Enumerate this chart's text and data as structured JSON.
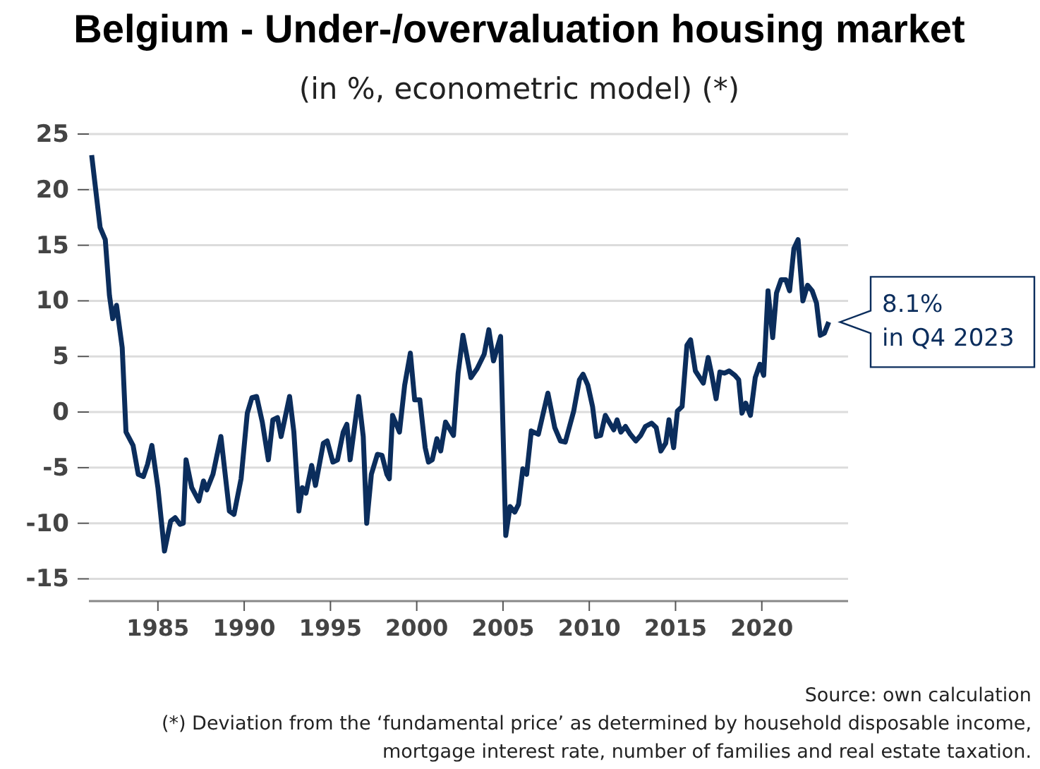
{
  "chart_data": {
    "type": "line",
    "title": "Belgium - Under-/overvaluation housing market",
    "subtitle": "(in %, econometric model) (*)",
    "x": [
      1981.16,
      1981.65,
      1981.95,
      1982.19,
      1982.38,
      1982.6,
      1982.93,
      1983.15,
      1983.56,
      1983.86,
      1984.16,
      1984.4,
      1984.65,
      1985.0,
      1985.38,
      1985.74,
      1986.0,
      1986.28,
      1986.47,
      1986.63,
      1986.96,
      1987.37,
      1987.64,
      1987.83,
      1988.19,
      1988.65,
      1989.14,
      1989.41,
      1989.82,
      1990.18,
      1990.45,
      1990.72,
      1991.05,
      1991.4,
      1991.66,
      1991.93,
      1992.14,
      1992.63,
      1992.88,
      1993.17,
      1993.37,
      1993.58,
      1993.91,
      1994.13,
      1994.59,
      1994.81,
      1995.14,
      1995.41,
      1995.74,
      1995.95,
      1996.14,
      1996.63,
      1996.9,
      1997.1,
      1997.37,
      1997.72,
      1997.99,
      1998.27,
      1998.41,
      1998.6,
      1999.0,
      1999.3,
      1999.63,
      1999.88,
      2000.18,
      2000.49,
      2000.68,
      2000.9,
      2001.17,
      2001.39,
      2001.67,
      2002.13,
      2002.4,
      2002.68,
      2003.14,
      2003.5,
      2003.91,
      2004.18,
      2004.45,
      2004.86,
      2005.16,
      2005.41,
      2005.68,
      2005.9,
      2006.15,
      2006.37,
      2006.64,
      2007.05,
      2007.6,
      2008.0,
      2008.33,
      2008.61,
      2009.1,
      2009.43,
      2009.64,
      2009.92,
      2010.19,
      2010.41,
      2010.66,
      2010.93,
      2011.15,
      2011.42,
      2011.61,
      2011.83,
      2012.1,
      2012.38,
      2012.7,
      2012.98,
      2013.25,
      2013.61,
      2013.88,
      2014.15,
      2014.43,
      2014.62,
      2014.89,
      2015.11,
      2015.38,
      2015.66,
      2015.87,
      2016.15,
      2016.61,
      2016.89,
      2017.08,
      2017.35,
      2017.57,
      2017.84,
      2018.11,
      2018.44,
      2018.66,
      2018.85,
      2019.07,
      2019.34,
      2019.62,
      2019.89,
      2020.11,
      2020.36,
      2020.63,
      2020.85,
      2021.12,
      2021.39,
      2021.61,
      2021.86,
      2022.1,
      2022.38,
      2022.65,
      2022.92,
      2023.17,
      2023.39,
      2023.63,
      2023.88
    ],
    "series": [
      {
        "color": "#0b2d5c",
        "values": [
          23.1,
          16.6,
          15.5,
          10.5,
          8.4,
          9.6,
          5.8,
          -1.8,
          -3.0,
          -5.6,
          -5.8,
          -4.7,
          -3.0,
          -6.8,
          -12.5,
          -9.8,
          -9.5,
          -10.1,
          -10.0,
          -4.3,
          -6.8,
          -8.0,
          -6.2,
          -7.0,
          -5.6,
          -2.2,
          -8.9,
          -9.2,
          -6.0,
          -0.1,
          1.3,
          1.4,
          -0.9,
          -4.3,
          -0.7,
          -0.5,
          -2.2,
          1.4,
          -1.8,
          -8.9,
          -6.8,
          -7.3,
          -4.8,
          -6.6,
          -2.8,
          -2.6,
          -4.5,
          -4.3,
          -1.8,
          -1.1,
          -4.3,
          1.4,
          -2.2,
          -10.0,
          -5.6,
          -3.8,
          -3.9,
          -5.6,
          -6.0,
          -0.3,
          -1.8,
          2.4,
          5.3,
          1.1,
          1.1,
          -3.2,
          -4.5,
          -4.3,
          -2.4,
          -3.5,
          -0.9,
          -2.1,
          3.5,
          6.9,
          3.1,
          3.9,
          5.2,
          7.4,
          4.6,
          6.8,
          -11.1,
          -8.5,
          -9.0,
          -8.3,
          -5.1,
          -5.6,
          -1.7,
          -2.0,
          1.7,
          -1.4,
          -2.6,
          -2.7,
          0.1,
          2.9,
          3.4,
          2.4,
          0.5,
          -2.2,
          -2.1,
          -0.3,
          -0.9,
          -1.6,
          -0.7,
          -1.8,
          -1.3,
          -2.0,
          -2.6,
          -2.1,
          -1.3,
          -1.0,
          -1.4,
          -3.5,
          -2.8,
          -0.7,
          -3.2,
          0.1,
          0.5,
          6.0,
          6.5,
          3.7,
          2.6,
          4.9,
          3.5,
          1.2,
          3.6,
          3.5,
          3.7,
          3.3,
          2.9,
          -0.1,
          0.8,
          -0.3,
          3.1,
          4.3,
          3.3,
          10.9,
          6.7,
          10.7,
          11.9,
          11.9,
          10.9,
          14.7,
          15.5,
          10.0,
          11.4,
          10.9,
          9.8,
          6.9,
          7.1,
          8.1
        ]
      }
    ],
    "xlim": [
      1981,
      2025
    ],
    "xticks": [
      1985,
      1990,
      1995,
      2000,
      2005,
      2010,
      2015,
      2020
    ],
    "ylim": [
      -17,
      25
    ],
    "yticks": [
      -15,
      -10,
      -5,
      0,
      5,
      10,
      15,
      20,
      25
    ],
    "grid": "y",
    "annotations": [
      {
        "text": "8.1%\nin Q4 2023",
        "x": 2023.88,
        "y": 8.1
      },
      "Source: own calculation",
      "(*) Deviation from the ‘fundamental price’ as determined by household disposable income,",
      "mortgage interest rate, number of families and real estate taxation."
    ]
  }
}
